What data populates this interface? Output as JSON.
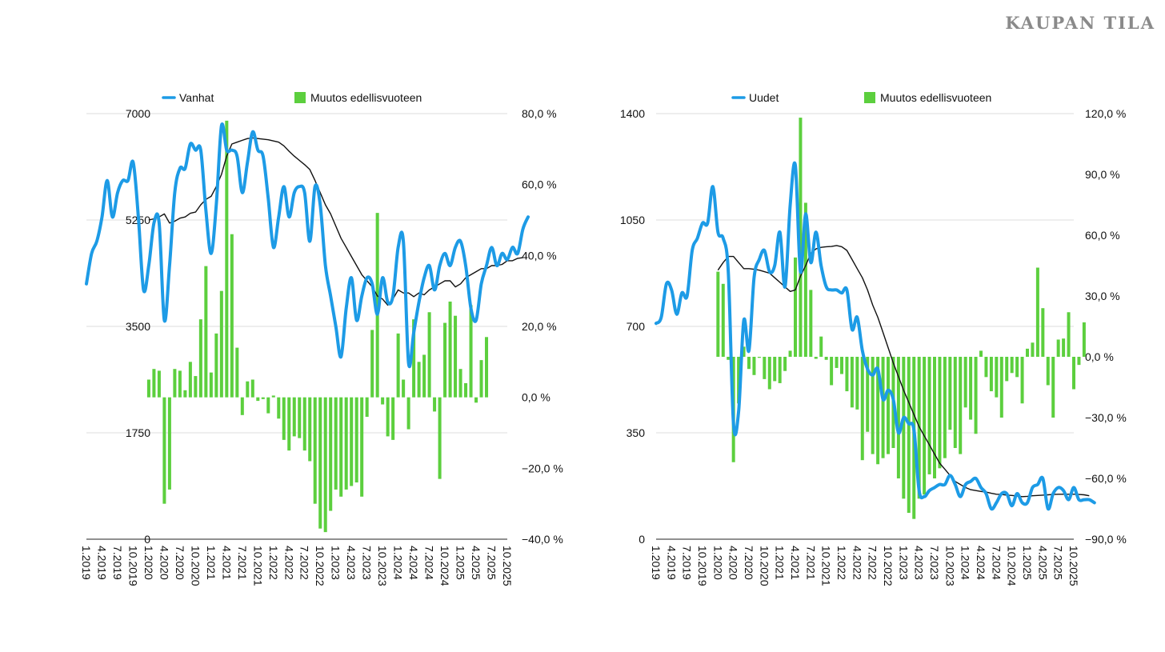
{
  "brand": "KAUPAN TILA",
  "x_labels": [
    "1.2019",
    "4.2019",
    "7.2019",
    "10.2019",
    "1.2020",
    "4.2020",
    "7.2020",
    "10.2020",
    "1.2021",
    "4.2021",
    "7.2021",
    "10.2021",
    "1.2022",
    "4.2022",
    "7.2022",
    "10.2022",
    "1.2023",
    "4.2023",
    "7.2023",
    "10.2023",
    "1.2024",
    "4.2024",
    "7.2024",
    "10.2024",
    "1.2025",
    "4.2025",
    "7.2025",
    "10.2025"
  ],
  "colors": {
    "line": "#1d9be6",
    "bar": "#5ccf3e",
    "trend": "#111111"
  },
  "chart_data": [
    {
      "type": "bar+line",
      "legend": {
        "line": "Vanhat",
        "bars": "Muutos edellisvuoteen"
      },
      "y_left_ticks": [
        "7000",
        "5250",
        "3500",
        "1750",
        "0"
      ],
      "y_left_range": [
        0,
        7000
      ],
      "y_right_ticks": [
        "80,0 %",
        "60,0 %",
        "40,0 %",
        "20,0 %",
        "0,0 %",
        "−20,0 %",
        "−40,0 %"
      ],
      "y_right_range": [
        -40,
        80
      ],
      "series_line": {
        "name": "Vanhat",
        "start": 0,
        "values": [
          4200,
          4700,
          4900,
          5300,
          5900,
          5300,
          5700,
          5900,
          5900,
          6200,
          5300,
          4100,
          4500,
          5200,
          5200,
          3600,
          4500,
          5700,
          6100,
          6100,
          6500,
          6400,
          6400,
          5400,
          4700,
          5500,
          6800,
          6400,
          6400,
          6300,
          5700,
          6200,
          6700,
          6400,
          6300,
          5600,
          4800,
          5300,
          5800,
          5300,
          5700,
          5800,
          5700,
          4900,
          5800,
          5500,
          4500,
          4000,
          3500,
          3000,
          3800,
          4300,
          3600,
          4000,
          4300,
          4200,
          3700,
          4300,
          3900,
          4000,
          4800,
          4900,
          2900,
          3400,
          3900,
          4300,
          4500,
          4100,
          4500,
          4700,
          4500,
          4800,
          4900,
          4500,
          3800,
          3600,
          4200,
          4500,
          4800,
          4500,
          4700,
          4600,
          4800,
          4700,
          5100,
          5300
        ]
      },
      "series_trend": {
        "name": "trend",
        "start": 12,
        "values": [
          5250,
          5270,
          5300,
          5350,
          5200,
          5230,
          5280,
          5300,
          5360,
          5380,
          5500,
          5590,
          5640,
          5800,
          6000,
          6300,
          6500,
          6530,
          6560,
          6590,
          6600,
          6590,
          6580,
          6570,
          6550,
          6530,
          6470,
          6380,
          6300,
          6230,
          6160,
          6080,
          5900,
          5700,
          5500,
          5350,
          5150,
          4950,
          4800,
          4650,
          4500,
          4350,
          4250,
          4150,
          4000,
          3950,
          3850,
          3950,
          4100,
          4050,
          4050,
          3990,
          4050,
          4020,
          4100,
          4150,
          4200,
          4250,
          4250,
          4150,
          4200,
          4300,
          4350,
          4400,
          4450,
          4450,
          4500,
          4500,
          4520,
          4580,
          4580,
          4620,
          4630
        ]
      },
      "series_bars": {
        "name": "Muutos edellisvuoteen",
        "start": 12,
        "values": [
          5,
          8,
          7.5,
          -30,
          -26,
          8,
          7.5,
          2,
          10,
          6,
          22,
          37,
          7,
          18,
          30,
          78,
          46,
          14,
          -5,
          4.5,
          5,
          -1,
          -0.5,
          -4.5,
          0.5,
          -6,
          -12,
          -15,
          -11,
          -11.5,
          -15,
          -18,
          -30,
          -37,
          -38,
          -32,
          -26,
          -28,
          -26,
          -25,
          -24,
          -28,
          -5.5,
          19,
          52,
          -2,
          -11,
          -12,
          18,
          5,
          -9,
          22,
          10,
          12,
          24,
          -4,
          -23,
          21,
          27,
          23,
          8,
          4,
          26,
          -1.5,
          10.5,
          17
        ]
      }
    },
    {
      "type": "bar+line",
      "legend": {
        "line": "Uudet",
        "bars": "Muutos edellisvuoteen"
      },
      "y_left_ticks": [
        "1400",
        "1050",
        "700",
        "350",
        "0"
      ],
      "y_left_range": [
        0,
        1400
      ],
      "y_right_ticks": [
        "120,0 %",
        "90,0 %",
        "60,0 %",
        "30,0 %",
        "0,0 %",
        "−30,0 %",
        "−60,0 %",
        "−90,0 %"
      ],
      "y_right_range": [
        -90,
        120
      ],
      "series_line": {
        "name": "Uudet",
        "start": 0,
        "values": [
          710,
          730,
          840,
          820,
          740,
          810,
          800,
          950,
          990,
          1040,
          1040,
          1160,
          1010,
          990,
          880,
          380,
          420,
          720,
          620,
          860,
          920,
          950,
          880,
          900,
          1010,
          830,
          1100,
          1230,
          880,
          1070,
          910,
          1010,
          900,
          830,
          820,
          820,
          810,
          820,
          690,
          730,
          620,
          560,
          540,
          560,
          460,
          490,
          460,
          350,
          400,
          380,
          360,
          160,
          140,
          160,
          170,
          180,
          180,
          210,
          180,
          140,
          180,
          190,
          200,
          170,
          150,
          100,
          120,
          150,
          150,
          110,
          150,
          120,
          120,
          170,
          180,
          200,
          100,
          150,
          170,
          160,
          130,
          170,
          130,
          130,
          130,
          120
        ]
      },
      "series_trend": {
        "name": "trend",
        "start": 12,
        "values": [
          885,
          910,
          930,
          930,
          910,
          890,
          890,
          888,
          885,
          880,
          875,
          860,
          845,
          830,
          815,
          820,
          865,
          900,
          940,
          955,
          960,
          962,
          963,
          966,
          962,
          950,
          920,
          890,
          860,
          820,
          770,
          730,
          680,
          630,
          580,
          535,
          490,
          450,
          410,
          370,
          340,
          310,
          280,
          250,
          230,
          210,
          190,
          180,
          170,
          163,
          160,
          157,
          155,
          151,
          148,
          147,
          145,
          144,
          142,
          140,
          141,
          143,
          144,
          145,
          146,
          147,
          148,
          148,
          148,
          148,
          147,
          146,
          143
        ]
      },
      "series_bars": {
        "name": "Muutos edellisvuoteen",
        "start": 12,
        "values": [
          42,
          36,
          -1.5,
          -52,
          -23,
          5,
          -6,
          -9,
          -0.5,
          -11,
          -16,
          -12,
          -13,
          -7,
          3,
          49,
          118,
          76,
          33,
          -1,
          10,
          -1.5,
          -14,
          -5.5,
          -8.5,
          -17,
          -25,
          -26,
          -51,
          -37,
          -48,
          -53,
          -50,
          -48,
          -45,
          -60,
          -70,
          -77,
          -80,
          -70,
          -68,
          -58,
          -60,
          -55,
          -50,
          -36,
          -45,
          -48,
          -25,
          -31,
          -38,
          3,
          -10,
          -17,
          -20,
          -30,
          -12,
          -8,
          -10,
          -23,
          4,
          7,
          44,
          24,
          -14,
          -30,
          8.5,
          9,
          22,
          -16,
          -4,
          17
        ]
      }
    }
  ]
}
